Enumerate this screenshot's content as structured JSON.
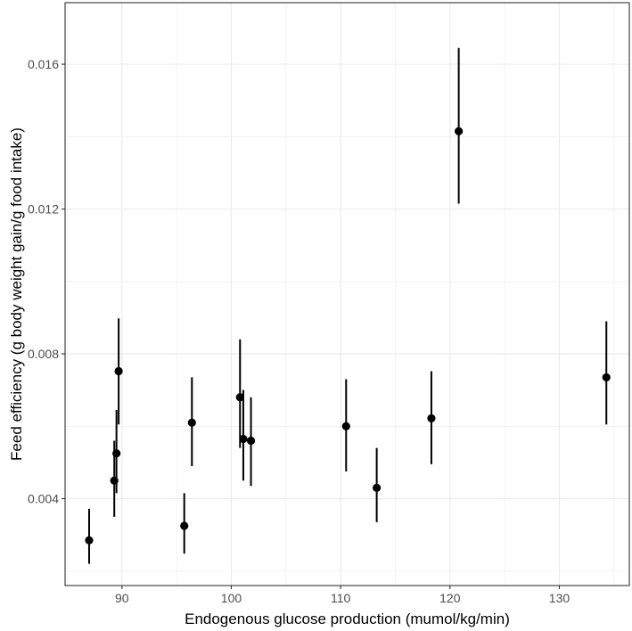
{
  "chart_data": {
    "type": "scatter",
    "title": "",
    "xlabel": "Endogenous glucose production (mumol/kg/min)",
    "ylabel": "Feed efficiency (g body weight gain/g food intake)",
    "xlim": [
      84.8,
      136.4
    ],
    "ylim": [
      0.0016,
      0.0177
    ],
    "x_ticks": [
      90,
      100,
      110,
      120,
      130
    ],
    "x_tick_labels": [
      "90",
      "100",
      "110",
      "120",
      "130"
    ],
    "y_ticks": [
      0.004,
      0.008,
      0.012,
      0.016
    ],
    "y_tick_labels": [
      "0.004",
      "0.008",
      "0.012",
      "0.016"
    ],
    "grid": true,
    "legend": "none",
    "colors": {
      "points": "#000000",
      "grid": "#ebebeb",
      "panel_border": "#333333"
    },
    "points": [
      {
        "x": 87.0,
        "y": 0.00285,
        "ymin": 0.0022,
        "ymax": 0.00372
      },
      {
        "x": 89.3,
        "y": 0.0045,
        "ymin": 0.0035,
        "ymax": 0.0056
      },
      {
        "x": 89.5,
        "y": 0.00525,
        "ymin": 0.00415,
        "ymax": 0.00645
      },
      {
        "x": 89.7,
        "y": 0.00752,
        "ymin": 0.00605,
        "ymax": 0.00898
      },
      {
        "x": 95.7,
        "y": 0.00325,
        "ymin": 0.00248,
        "ymax": 0.00415
      },
      {
        "x": 96.4,
        "y": 0.0061,
        "ymin": 0.0049,
        "ymax": 0.00735
      },
      {
        "x": 100.8,
        "y": 0.0068,
        "ymin": 0.0054,
        "ymax": 0.0084
      },
      {
        "x": 101.1,
        "y": 0.00565,
        "ymin": 0.0045,
        "ymax": 0.007
      },
      {
        "x": 101.8,
        "y": 0.0056,
        "ymin": 0.00435,
        "ymax": 0.0068
      },
      {
        "x": 110.5,
        "y": 0.006,
        "ymin": 0.00475,
        "ymax": 0.0073
      },
      {
        "x": 113.3,
        "y": 0.0043,
        "ymin": 0.00335,
        "ymax": 0.0054
      },
      {
        "x": 118.3,
        "y": 0.00622,
        "ymin": 0.00495,
        "ymax": 0.00752
      },
      {
        "x": 120.8,
        "y": 0.01415,
        "ymin": 0.01215,
        "ymax": 0.01645
      },
      {
        "x": 134.3,
        "y": 0.00735,
        "ymin": 0.00605,
        "ymax": 0.0089
      }
    ]
  }
}
